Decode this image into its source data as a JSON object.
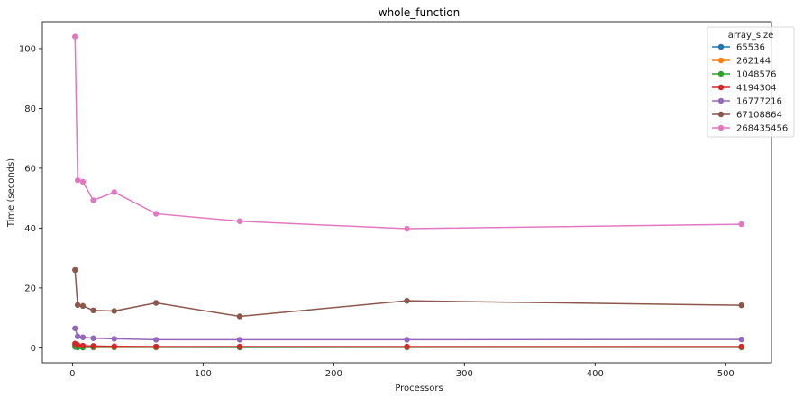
{
  "chart_data": {
    "type": "line",
    "title": "whole_function",
    "xlabel": "Processors",
    "ylabel": "Time (seconds)",
    "xlim": [
      -23,
      535
    ],
    "ylim": [
      -5,
      109
    ],
    "xticks": [
      0,
      100,
      200,
      300,
      400,
      500
    ],
    "yticks": [
      0,
      20,
      40,
      60,
      80,
      100
    ],
    "grid": false,
    "legend": {
      "title": "array_size",
      "placement": "top-right"
    },
    "x": [
      2,
      4,
      8,
      16,
      32,
      64,
      128,
      256,
      512
    ],
    "series": [
      {
        "name": "65536",
        "color": "#1f77b4",
        "values": [
          0.3,
          0.1,
          0.1,
          0.1,
          0.1,
          0.1,
          0.1,
          0.1,
          0.1
        ]
      },
      {
        "name": "262144",
        "color": "#ff7f0e",
        "values": [
          0.5,
          0.3,
          0.2,
          0.2,
          0.2,
          0.2,
          0.2,
          0.2,
          0.2
        ]
      },
      {
        "name": "1048576",
        "color": "#2ca02c",
        "values": [
          0.6,
          0.2,
          0.1,
          0.3,
          0.3,
          0.3,
          0.2,
          0.3,
          0.3
        ]
      },
      {
        "name": "4194304",
        "color": "#d62728",
        "values": [
          1.4,
          0.9,
          0.7,
          0.6,
          0.5,
          0.4,
          0.4,
          0.4,
          0.4
        ]
      },
      {
        "name": "16777216",
        "color": "#9467bd",
        "values": [
          6.5,
          3.8,
          3.5,
          3.2,
          3.0,
          2.7,
          2.7,
          2.7,
          2.8
        ]
      },
      {
        "name": "67108864",
        "color": "#8c564b",
        "values": [
          26.0,
          14.3,
          14.0,
          12.5,
          12.3,
          15.0,
          10.5,
          15.7,
          14.2
        ]
      },
      {
        "name": "268435456",
        "color": "#e377c2",
        "values": [
          104.0,
          56.0,
          55.5,
          49.3,
          52.0,
          44.8,
          42.3,
          39.8,
          41.3
        ]
      }
    ]
  }
}
